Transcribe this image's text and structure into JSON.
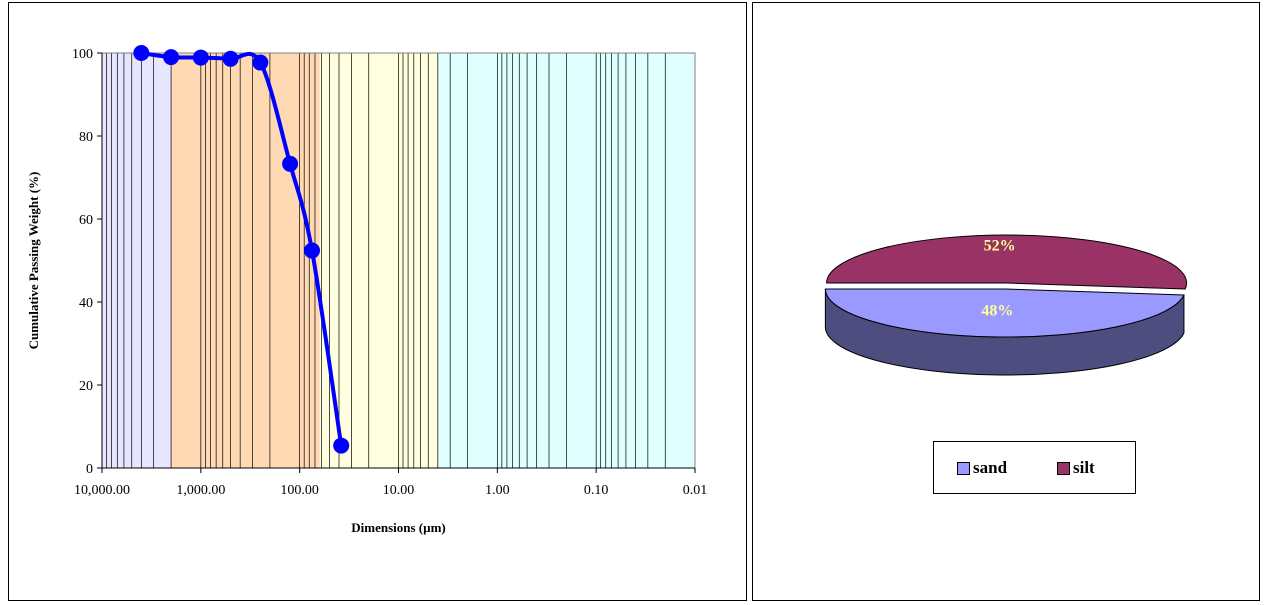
{
  "chart_data": [
    {
      "type": "scatter",
      "title": "",
      "xlabel": "Dimensions (µm)",
      "ylabel": "Cumulative Passing Weight (%)",
      "x_scale": "log",
      "x_reversed": true,
      "xlim": [
        10000,
        0.01
      ],
      "ylim": [
        0,
        100
      ],
      "xticks": [
        10000,
        1000,
        100,
        10,
        1,
        0.1,
        0.01
      ],
      "xtick_labels": [
        "10,000.00",
        "1,000.00",
        "100.00",
        "10.00",
        "1.00",
        "0.10",
        "0.01"
      ],
      "yticks": [
        0,
        20,
        40,
        60,
        80,
        100
      ],
      "ytick_labels": [
        "0",
        "20",
        "40",
        "60",
        "80",
        "100"
      ],
      "grid": "vertical log gridlines",
      "size_class_bands": [
        {
          "from": 10000,
          "to": 2000,
          "color": "#e6e6ff"
        },
        {
          "from": 2000,
          "to": 62.5,
          "color": "#ffd9b3"
        },
        {
          "from": 62.5,
          "to": 4,
          "color": "#ffffe0"
        },
        {
          "from": 4,
          "to": 0.01,
          "color": "#e0ffff"
        }
      ],
      "series": [
        {
          "color": "#0000ff",
          "x": [
            4000,
            2000,
            1000,
            500,
            250,
            125,
            75,
            38
          ],
          "y": [
            100,
            99,
            98.9,
            98.6,
            97.7,
            73.3,
            52.4,
            5.4
          ]
        }
      ]
    },
    {
      "type": "pie",
      "style": "3d-exploded",
      "categories": [
        "sand",
        "silt"
      ],
      "values": [
        48,
        52
      ],
      "data_labels": [
        "48%",
        "52%"
      ],
      "colors": [
        "#9999ff",
        "#993366"
      ],
      "side_colors": [
        "#4d4d80",
        "#4d1a33"
      ],
      "legend": "bottom"
    }
  ]
}
